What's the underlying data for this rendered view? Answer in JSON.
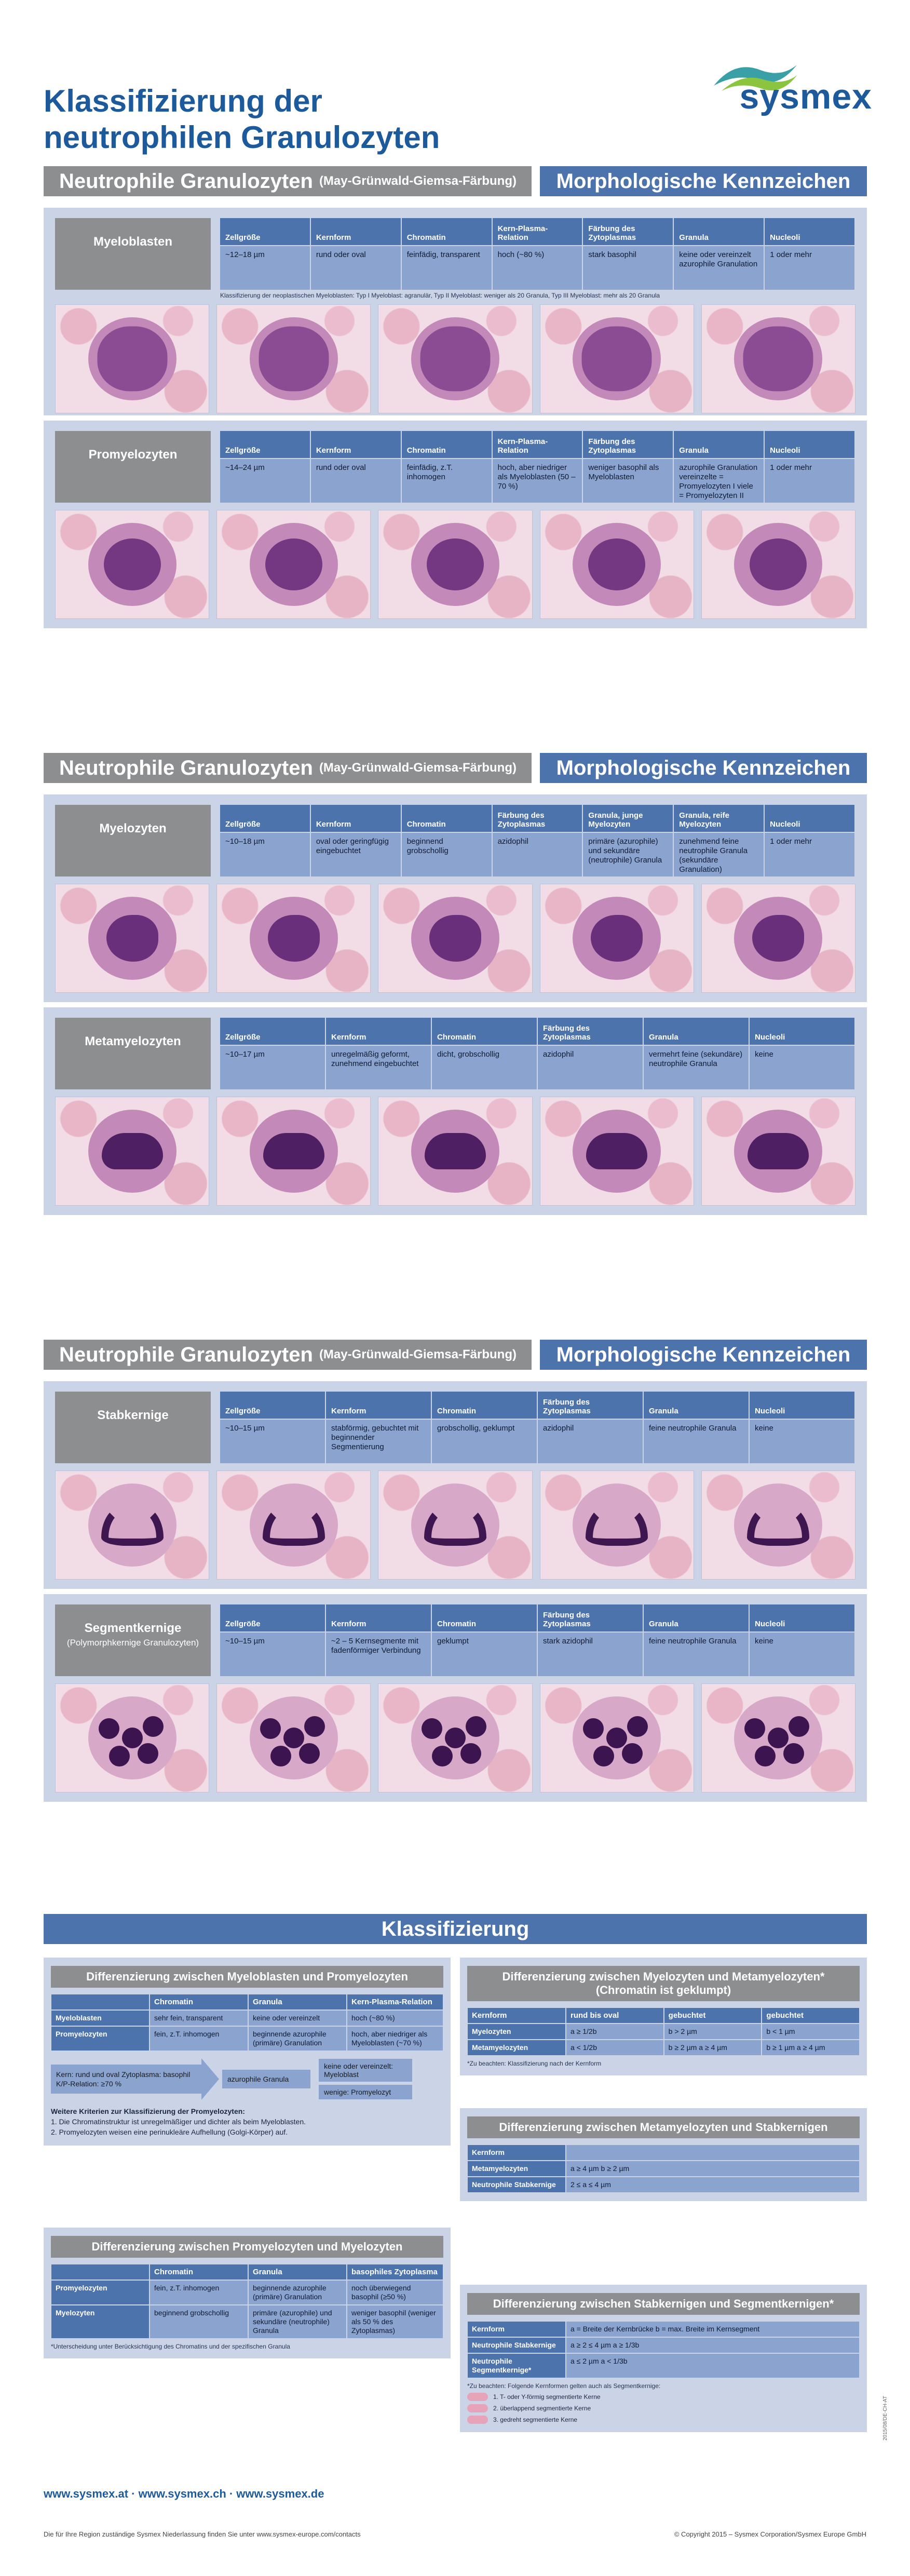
{
  "title_line1": "Klassifizierung der",
  "title_line2": "neutrophilen Granulozyten",
  "logo_text": "sysmex",
  "colors": {
    "brand_blue": "#1c5a9c",
    "header_blue": "#4d73ad",
    "gray": "#8d8e90",
    "panel": "#cbd3e6",
    "cell_fill": "#8ba4cf"
  },
  "section_header": {
    "left": "Neutrophile Granulozyten",
    "left_sub": "(May-Grünwald-Giemsa-Färbung)",
    "right": "Morphologische Kennzeichen"
  },
  "sections": [
    {
      "cells": [
        {
          "name": "Myeloblasten",
          "name_sub": "",
          "headers": [
            "Zellgröße",
            "Kernform",
            "Chromatin",
            "Kern-Plasma-Relation",
            "Färbung des Zytoplasmas",
            "Granula",
            "Nucleoli"
          ],
          "values": [
            "~12–18 µm",
            "rund oder oval",
            "feinfädig, transparent",
            "hoch (~80 %)",
            "stark basophil",
            "keine oder vereinzelt azurophile Granulation",
            "1 oder mehr"
          ],
          "note": "Klassifizierung der neoplastischen Myeloblasten: Typ I Myeloblast: agranulär, Typ II Myeloblast: weniger als 20 Granula, Typ III Myeloblast: mehr als 20 Granula",
          "img_type": "blast"
        },
        {
          "name": "Promyelozyten",
          "name_sub": "",
          "headers": [
            "Zellgröße",
            "Kernform",
            "Chromatin",
            "Kern-Plasma-Relation",
            "Färbung des Zytoplasmas",
            "Granula",
            "Nucleoli"
          ],
          "values": [
            "~14–24 µm",
            "rund oder oval",
            "feinfädig, z.T. inhomogen",
            "hoch, aber niedriger als Myeloblasten (50 – 70 %)",
            "weniger basophil als Myeloblasten",
            "azurophile Granulation vereinzelte = Promyelozyten I viele = Promyelozyten II",
            "1 oder mehr"
          ],
          "note": "",
          "img_type": "promy"
        }
      ]
    },
    {
      "cells": [
        {
          "name": "Myelozyten",
          "name_sub": "",
          "headers": [
            "Zellgröße",
            "Kernform",
            "Chromatin",
            "Färbung des Zytoplasmas",
            "Granula, junge Myelozyten",
            "Granula, reife Myelozyten",
            "Nucleoli"
          ],
          "values": [
            "~10–18 µm",
            "oval oder geringfügig eingebuchtet",
            "beginnend grobschollig",
            "azidophil",
            "primäre (azurophile) und sekundäre (neutrophile) Granula",
            "zunehmend feine neutrophile Granula (sekundäre Granulation)",
            "1 oder mehr"
          ],
          "note": "",
          "img_type": "myelo"
        },
        {
          "name": "Metamyelozyten",
          "name_sub": "",
          "headers": [
            "Zellgröße",
            "Kernform",
            "Chromatin",
            "Färbung des Zytoplasmas",
            "Granula",
            "Nucleoli"
          ],
          "values": [
            "~10–17 µm",
            "unregelmäßig geformt, zunehmend eingebuchtet",
            "dicht, grobschollig",
            "azidophil",
            "vermehrt feine (sekundäre) neutrophile Granula",
            "keine"
          ],
          "note": "",
          "img_type": "meta"
        }
      ]
    },
    {
      "cells": [
        {
          "name": "Stabkernige",
          "name_sub": "",
          "headers": [
            "Zellgröße",
            "Kernform",
            "Chromatin",
            "Färbung des Zytoplasmas",
            "Granula",
            "Nucleoli"
          ],
          "values": [
            "~10–15 µm",
            "stabförmig, gebuchtet mit beginnender Segmentierung",
            "grobschollig, geklumpt",
            "azidophil",
            "feine neutrophile Granula",
            "keine"
          ],
          "note": "",
          "img_type": "band"
        },
        {
          "name": "Segmentkernige",
          "name_sub": "(Polymorphkernige Granulozyten)",
          "headers": [
            "Zellgröße",
            "Kernform",
            "Chromatin",
            "Färbung des Zytoplasmas",
            "Granula",
            "Nucleoli"
          ],
          "values": [
            "~10–15 µm",
            "~2 – 5 Kernsegmente mit fadenförmiger Verbindung",
            "geklumpt",
            "stark azidophil",
            "feine neutrophile Granula",
            "keine"
          ],
          "note": "",
          "img_type": "seg"
        }
      ]
    }
  ],
  "klass": {
    "title": "Klassifizierung",
    "box1": {
      "title": "Differenzierung zwischen Myeloblasten und Promyelozyten",
      "headers": [
        "",
        "Chromatin",
        "Granula",
        "Kern-Plasma-Relation"
      ],
      "rows": [
        [
          "Myeloblasten",
          "sehr fein, transparent",
          "keine oder vereinzelt",
          "hoch (~80 %)"
        ],
        [
          "Promyelozyten",
          "fein, z.T. inhomogen",
          "beginnende azurophile (primäre) Granulation",
          "hoch, aber niedriger als Myeloblasten (~70 %)"
        ]
      ],
      "flow_a": "Kern: rund und oval Zytoplasma: basophil K/P-Relation: ≥70 %",
      "flow_b": "azurophile Granula",
      "flow_c1": "keine oder vereinzelt: Myeloblast",
      "flow_c2": "wenige: Promyelozyt",
      "criteria_title": "Weitere Kriterien zur Klassifizierung der Promyelozyten:",
      "criteria_1": "1. Die Chromatinstruktur ist unregelmäßiger und dichter als beim Myeloblasten.",
      "criteria_2": "2. Promyelozyten weisen eine perinukleäre Aufhellung (Golgi-Körper) auf."
    },
    "box2": {
      "title": "Differenzierung zwischen Promyelozyten und Myelozyten",
      "headers": [
        "",
        "Chromatin",
        "Granula",
        "basophiles Zytoplasma"
      ],
      "rows": [
        [
          "Promyelozyten",
          "fein, z.T. inhomogen",
          "beginnende azurophile (primäre) Granulation",
          "noch überwiegend basophil (≥50 %)"
        ],
        [
          "Myelozyten",
          "beginnend grobschollig",
          "primäre (azurophile) und sekundäre (neutrophile) Granula",
          "weniger basophil (weniger als 50 % des Zytoplasmas)"
        ]
      ],
      "footnote": "*Unterscheidung unter Berücksichtigung des Chromatins und der spezifischen Granula"
    },
    "box3": {
      "title": "Differenzierung zwischen Myelozyten und Metamyelozyten* (Chromatin ist geklumpt)",
      "headers": [
        "Kernform",
        "rund bis oval",
        "gebuchtet",
        "gebuchtet"
      ],
      "rows": [
        [
          "Myelozyten",
          "a ≥ 1/2b",
          "b > 2 µm",
          "b < 1 µm"
        ],
        [
          "Metamyelozyten",
          "a < 1/2b",
          "b ≥ 2 µm a ≥ 4 µm",
          "b ≥ 1 µm a ≥ 4 µm"
        ]
      ],
      "footnote": "*Zu beachten: Klassifizierung nach der Kernform"
    },
    "box4": {
      "title": "Differenzierung zwischen Metamyelozyten und Stabkernigen",
      "rows": [
        [
          "Kernform",
          ""
        ],
        [
          "Metamyelozyten",
          "a ≥ 4 µm b ≥ 2 µm"
        ],
        [
          "Neutrophile Stabkernige",
          "2 ≤ a ≤ 4 µm"
        ]
      ]
    },
    "box5": {
      "title": "Differenzierung zwischen Stabkernigen und Segmentkernigen*",
      "rows": [
        [
          "Kernform",
          "a = Breite der Kernbrücke b = max. Breite im Kernsegment"
        ],
        [
          "Neutrophile Stabkernige",
          "a ≥ 2 ≤ 4 µm a ≥ 1/3b"
        ],
        [
          "Neutrophile Segmentkernige*",
          "a ≤ 2 µm a < 1/3b"
        ]
      ],
      "footnote": "*Zu beachten: Folgende Kernformen gelten auch als Segmentkernige:",
      "legend": [
        "1. T- oder Y-förmig segmentierte Kerne",
        "2. überlappend segmentierte Kerne",
        "3. gedreht segmentierte Kerne"
      ]
    }
  },
  "links": "www.sysmex.at · www.sysmex.ch · www.sysmex.de",
  "footer_left": "Die für Ihre Region zuständige Sysmex Niederlassung finden Sie unter www.sysmex-europe.com/contacts",
  "footer_right": "© Copyright 2015 – Sysmex Corporation/Sysmex Europe GmbH",
  "vcode": "2015/08/DE-CH-AT"
}
